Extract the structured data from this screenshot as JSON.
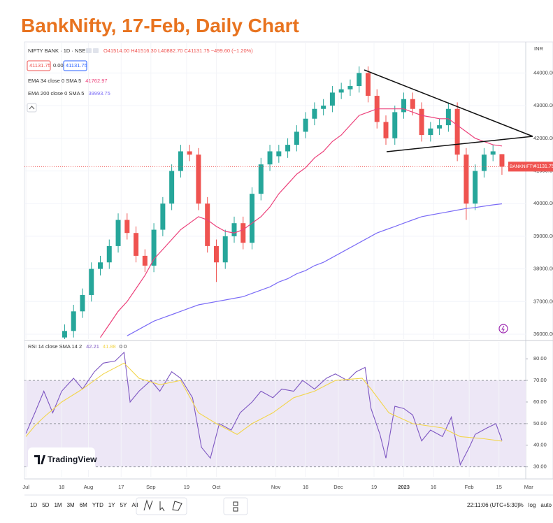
{
  "chart_data": [
    {
      "type": "candlestick",
      "title": "BankNifty, 17-Feb, Daily Chart",
      "symbol": "NIFTY BANK · 1D · NSE",
      "ohlc_text": "O41514.00 H41516.30 L40882.70 C41131.75 −499.60 (−1.20%)",
      "quote_boxes": [
        "41131.75",
        "0.00",
        "41131.75"
      ],
      "currency": "INR",
      "price_tag": [
        "BANKNIFTY",
        "41131.75"
      ],
      "x": [
        13,
        16,
        19,
        22,
        25,
        28,
        31,
        34,
        37,
        40,
        43,
        46,
        49,
        52,
        55,
        58,
        61,
        64,
        67,
        70,
        73,
        76,
        79,
        82,
        85,
        88,
        91,
        94,
        97,
        100,
        103,
        106,
        109,
        112,
        115,
        118,
        121,
        124,
        127,
        130,
        133,
        136,
        139,
        142,
        145,
        148,
        151,
        154,
        157,
        160
      ],
      "open": [
        35900,
        36100,
        36700,
        37200,
        38000,
        38200,
        38700,
        39500,
        39100,
        38400,
        38100,
        39200,
        40000,
        41000,
        41600,
        41500,
        40000,
        38700,
        38200,
        39000,
        39400,
        38800,
        40300,
        41200,
        41450,
        41600,
        41800,
        42200,
        42600,
        42900,
        43000,
        43400,
        43500,
        43600,
        44000,
        43300,
        42500,
        42000,
        42800,
        43200,
        42900,
        42100,
        42300,
        42400,
        42900,
        41500,
        40000,
        41000,
        41500,
        41514
      ],
      "high": [
        36300,
        36900,
        37400,
        38200,
        38400,
        38900,
        39700,
        39700,
        39300,
        38600,
        39400,
        40200,
        41200,
        41800,
        41800,
        41700,
        40200,
        38900,
        39200,
        39600,
        39600,
        40500,
        41400,
        41800,
        41800,
        42000,
        42400,
        42800,
        43100,
        43200,
        43600,
        43700,
        43800,
        44200,
        44200,
        43500,
        42700,
        43000,
        43400,
        43400,
        43100,
        42500,
        42600,
        43100,
        43100,
        41700,
        41200,
        41700,
        41800,
        41516.3
      ],
      "low": [
        35700,
        35900,
        36500,
        37000,
        37800,
        38000,
        38500,
        38900,
        38200,
        37900,
        37900,
        39000,
        39800,
        40800,
        41300,
        39800,
        38500,
        37600,
        38000,
        38800,
        38600,
        38600,
        40100,
        41000,
        41250,
        41400,
        41600,
        42000,
        42400,
        42700,
        42800,
        43200,
        43300,
        43400,
        43100,
        42300,
        41800,
        41800,
        42600,
        42700,
        41900,
        41900,
        42100,
        42200,
        41300,
        39500,
        39800,
        40800,
        41300,
        40882.7
      ],
      "close": [
        36100,
        36700,
        37200,
        38000,
        38200,
        38700,
        39500,
        39100,
        38400,
        38100,
        39200,
        40000,
        41000,
        41600,
        41500,
        40000,
        38700,
        38200,
        39000,
        39400,
        38800,
        40300,
        41200,
        41600,
        41600,
        41800,
        42200,
        42600,
        42900,
        43000,
        43400,
        43500,
        43600,
        44000,
        43300,
        42500,
        42000,
        42800,
        43200,
        42900,
        42100,
        42300,
        42400,
        42900,
        41500,
        40000,
        41000,
        41500,
        41600,
        41131.75
      ],
      "up_color": "#26a69a",
      "down_color": "#ef5350",
      "xlim": [
        -0.5,
        168
      ],
      "ylim": [
        35850,
        44950
      ],
      "yticks": [
        {
          "value": 36000,
          "label": "36000.00"
        },
        {
          "value": 37000,
          "label": "37000.00"
        },
        {
          "value": 38000,
          "label": "38000.00"
        },
        {
          "value": 39000,
          "label": "39000.00"
        },
        {
          "value": 40000,
          "label": "40000.00"
        },
        {
          "value": 41000,
          "label": "41000.00"
        },
        {
          "value": 42000,
          "label": "42000.00"
        },
        {
          "value": 43000,
          "label": "43000.00"
        },
        {
          "value": 44000,
          "label": "44000.00"
        }
      ],
      "series": [
        {
          "name": "EMA 34 close 0 SMA 5",
          "value_label": "41762.97",
          "color": "#ec407a",
          "values": [
            null,
            null,
            null,
            null,
            35900,
            36300,
            36700,
            37000,
            37400,
            37800,
            38300,
            38600,
            38900,
            39200,
            39400,
            39600,
            39500,
            39300,
            39150,
            39100,
            39200,
            39400,
            39600,
            39900,
            40300,
            40600,
            40900,
            41100,
            41400,
            41600,
            41900,
            42100,
            42400,
            42700,
            42800,
            42900,
            42900,
            42900,
            42900,
            42800,
            42700,
            42650,
            42600,
            42600,
            42400,
            42200,
            42000,
            41900,
            41800,
            41762.97
          ]
        },
        {
          "name": "EMA 200 close 0 SMA 5",
          "value_label": "39993.75",
          "color": "#7b6cf6",
          "values": [
            null,
            null,
            null,
            null,
            null,
            null,
            null,
            35950,
            36100,
            36250,
            36400,
            36500,
            36600,
            36700,
            36800,
            36900,
            36950,
            37000,
            37050,
            37100,
            37150,
            37250,
            37350,
            37450,
            37600,
            37700,
            37850,
            37950,
            38100,
            38200,
            38350,
            38500,
            38650,
            38800,
            38950,
            39100,
            39200,
            39300,
            39400,
            39500,
            39600,
            39650,
            39700,
            39750,
            39800,
            39850,
            39880,
            39920,
            39960,
            39993.75
          ]
        }
      ]
    },
    {
      "type": "line",
      "title": "RSI 14 close SMA 14 2",
      "legend_suffix": "0 0",
      "xlim": [
        -0.5,
        168
      ],
      "ylim": [
        26,
        87.5
      ],
      "yticks": [
        {
          "value": 30,
          "label": "30.00"
        },
        {
          "value": 40,
          "label": "40.00"
        },
        {
          "value": 50,
          "label": "50.00"
        },
        {
          "value": 60,
          "label": "60.00"
        },
        {
          "value": 70,
          "label": "70.00"
        },
        {
          "value": 80,
          "label": "80.00"
        }
      ],
      "band": [
        30,
        70
      ],
      "band_color": "#ede7f6",
      "mid_level": 50,
      "xticks": [
        {
          "value": 0,
          "label": "Jul"
        },
        {
          "value": 12,
          "label": "18"
        },
        {
          "value": 21,
          "label": "Aug"
        },
        {
          "value": 32,
          "label": "17"
        },
        {
          "value": 42,
          "label": "Sep"
        },
        {
          "value": 54,
          "label": "19"
        },
        {
          "value": 64,
          "label": "Oct"
        },
        {
          "value": 84,
          "label": "Nov"
        },
        {
          "value": 94,
          "label": "16"
        },
        {
          "value": 105,
          "label": "Dec"
        },
        {
          "value": 117,
          "label": "19"
        },
        {
          "value": 127,
          "label": "2023"
        },
        {
          "value": 137,
          "label": "16"
        },
        {
          "value": 149,
          "label": "Feb"
        },
        {
          "value": 159,
          "label": "15"
        },
        {
          "value": 169,
          "label": "Mar"
        }
      ],
      "series": [
        {
          "value_label": "42.21",
          "color": "#7e57c2",
          "x": [
            0,
            3,
            6,
            9,
            12,
            16,
            19,
            23,
            26,
            30,
            33,
            35,
            38,
            42,
            45,
            49,
            52,
            56,
            59,
            62,
            65,
            69,
            72,
            76,
            79,
            83,
            86,
            90,
            93,
            97,
            101,
            104,
            108,
            111,
            114,
            116,
            119,
            121,
            124,
            127,
            130,
            133,
            136,
            140,
            143,
            146,
            149,
            151,
            155,
            158,
            160
          ],
          "values": [
            45.5,
            55,
            65,
            55,
            65,
            71,
            66,
            74,
            78,
            79,
            83,
            60,
            65,
            70,
            65,
            74,
            71,
            62,
            39,
            34,
            50,
            47,
            55,
            60,
            65,
            62,
            66,
            65,
            70,
            66,
            71,
            73,
            70,
            74,
            76,
            57,
            45,
            34,
            58,
            57,
            54,
            42,
            47,
            44,
            53,
            31,
            39,
            45,
            48,
            50,
            42.21
          ]
        },
        {
          "value_label": "41.88",
          "color": "#f2d54b",
          "x": [
            0,
            3,
            6,
            12,
            19,
            26,
            33,
            38,
            45,
            52,
            58,
            64,
            71,
            76,
            83,
            90,
            97,
            104,
            113,
            116,
            122,
            130,
            140,
            146,
            154,
            160
          ],
          "values": [
            44,
            49,
            53,
            60,
            66,
            73,
            78,
            71,
            68,
            70,
            55,
            50,
            45,
            50,
            55,
            62,
            65,
            70,
            71,
            66,
            55,
            50,
            48,
            44,
            43,
            41.88
          ]
        }
      ]
    }
  ],
  "watermark": "TradingView",
  "toolbar": {
    "ranges": [
      "1D",
      "5D",
      "1M",
      "3M",
      "6M",
      "YTD",
      "1Y",
      "5Y",
      "All"
    ],
    "clock": "22:11:06 (UTC+5:30)",
    "scale_options": [
      "%",
      "log",
      "auto"
    ]
  }
}
